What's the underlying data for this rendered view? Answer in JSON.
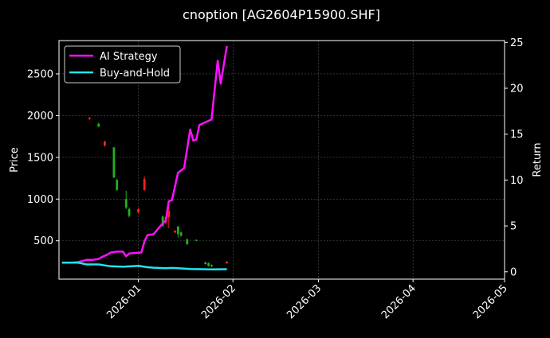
{
  "chart_data": {
    "type": "line",
    "title": "cnoption [AG2604P15900.SHF]",
    "xlabel": "",
    "ylabel_left": "Price",
    "ylabel_right": "Return",
    "x_ticks": [
      "2026-01",
      "2026-02",
      "2026-03",
      "2026-04",
      "2026-05"
    ],
    "y_left_ticks": [
      500,
      1000,
      1500,
      2000,
      2500
    ],
    "y_right_ticks": [
      0,
      5,
      10,
      15,
      20,
      25
    ],
    "y_left_range": [
      40,
      2900
    ],
    "y_right_range": [
      -0.8,
      25.2
    ],
    "x_range": [
      "2025-12-06",
      "2026-05-01"
    ],
    "grid": true,
    "legend_position": "top-left",
    "colors": {
      "background": "#000000",
      "up": "#ff2020",
      "down": "#22b022",
      "ai": "#ff10ff",
      "bh": "#22e5f0",
      "grid": "#555555"
    },
    "series": [
      {
        "name": "AI Strategy",
        "axis": "right",
        "color": "#ff10ff",
        "points": [
          [
            "2025-12-07",
            1.0
          ],
          [
            "2025-12-10",
            1.0
          ],
          [
            "2025-12-12",
            1.05
          ],
          [
            "2025-12-14",
            1.2
          ],
          [
            "2025-12-15",
            1.3
          ],
          [
            "2025-12-17",
            1.3
          ],
          [
            "2025-12-19",
            1.4
          ],
          [
            "2025-12-20",
            1.6
          ],
          [
            "2025-12-22",
            1.9
          ],
          [
            "2025-12-23",
            2.1
          ],
          [
            "2025-12-25",
            2.2
          ],
          [
            "2025-12-27",
            2.2
          ],
          [
            "2025-12-28",
            1.7
          ],
          [
            "2025-12-29",
            2.0
          ],
          [
            "2026-01-02",
            2.1
          ],
          [
            "2026-01-03",
            3.3
          ],
          [
            "2026-01-04",
            4.0
          ],
          [
            "2026-01-06",
            4.1
          ],
          [
            "2026-01-08",
            4.9
          ],
          [
            "2026-01-10",
            5.6
          ],
          [
            "2026-01-11",
            7.7
          ],
          [
            "2026-01-12",
            7.8
          ],
          [
            "2026-01-14",
            10.8
          ],
          [
            "2026-01-16",
            11.3
          ],
          [
            "2026-01-18",
            15.5
          ],
          [
            "2026-01-19",
            14.3
          ],
          [
            "2026-01-20",
            14.4
          ],
          [
            "2026-01-21",
            16.0
          ],
          [
            "2026-01-25",
            16.6
          ],
          [
            "2026-01-27",
            23.0
          ],
          [
            "2026-01-28",
            20.5
          ],
          [
            "2026-01-30",
            24.6
          ]
        ]
      },
      {
        "name": "Buy-and-Hold",
        "axis": "right",
        "color": "#22e5f0",
        "points": [
          [
            "2025-12-07",
            1.0
          ],
          [
            "2025-12-12",
            1.0
          ],
          [
            "2025-12-13",
            0.95
          ],
          [
            "2025-12-15",
            0.8
          ],
          [
            "2025-12-19",
            0.8
          ],
          [
            "2025-12-21",
            0.7
          ],
          [
            "2025-12-23",
            0.6
          ],
          [
            "2025-12-27",
            0.55
          ],
          [
            "2025-12-30",
            0.6
          ],
          [
            "2026-01-01",
            0.65
          ],
          [
            "2026-01-02",
            0.6
          ],
          [
            "2026-01-04",
            0.5
          ],
          [
            "2026-01-06",
            0.45
          ],
          [
            "2026-01-10",
            0.4
          ],
          [
            "2026-01-12",
            0.42
          ],
          [
            "2026-01-14",
            0.4
          ],
          [
            "2026-01-18",
            0.3
          ],
          [
            "2026-01-25",
            0.27
          ],
          [
            "2026-01-30",
            0.28
          ]
        ]
      }
    ],
    "candles": [
      {
        "date": "2025-12-16",
        "open": 1960,
        "close": 1975,
        "high": 1985,
        "low": 1950
      },
      {
        "date": "2025-12-19",
        "open": 1900,
        "close": 1870,
        "high": 1920,
        "low": 1860
      },
      {
        "date": "2025-12-21",
        "open": 1640,
        "close": 1690,
        "high": 1700,
        "low": 1630
      },
      {
        "date": "2025-12-24",
        "open": 1620,
        "close": 1260,
        "high": 1620,
        "low": 1250
      },
      {
        "date": "2025-12-25",
        "open": 1230,
        "close": 1110,
        "high": 1240,
        "low": 1100
      },
      {
        "date": "2025-12-28",
        "open": 1000,
        "close": 900,
        "high": 1100,
        "low": 880
      },
      {
        "date": "2025-12-29",
        "open": 880,
        "close": 800,
        "high": 900,
        "low": 780
      },
      {
        "date": "2026-01-01",
        "open": 840,
        "close": 880,
        "high": 890,
        "low": 830
      },
      {
        "date": "2026-01-03",
        "open": 1110,
        "close": 1240,
        "high": 1270,
        "low": 1100
      },
      {
        "date": "2026-01-09",
        "open": 790,
        "close": 680,
        "high": 800,
        "low": 660
      },
      {
        "date": "2026-01-10",
        "open": 720,
        "close": 780,
        "high": 790,
        "low": 700
      },
      {
        "date": "2026-01-11",
        "open": 780,
        "close": 860,
        "high": 960,
        "low": 650
      },
      {
        "date": "2026-01-13",
        "open": 600,
        "close": 620,
        "high": 630,
        "low": 590
      },
      {
        "date": "2026-01-14",
        "open": 670,
        "close": 580,
        "high": 680,
        "low": 540
      },
      {
        "date": "2026-01-15",
        "open": 600,
        "close": 560,
        "high": 610,
        "low": 550
      },
      {
        "date": "2026-01-17",
        "open": 520,
        "close": 460,
        "high": 520,
        "low": 450
      },
      {
        "date": "2026-01-20",
        "open": 510,
        "close": 505,
        "high": 515,
        "low": 500
      },
      {
        "date": "2026-01-23",
        "open": 240,
        "close": 220,
        "high": 250,
        "low": 215
      },
      {
        "date": "2026-01-24",
        "open": 230,
        "close": 200,
        "high": 240,
        "low": 190
      },
      {
        "date": "2026-01-25",
        "open": 210,
        "close": 195,
        "high": 215,
        "low": 185
      },
      {
        "date": "2026-01-30",
        "open": 230,
        "close": 250,
        "high": 255,
        "low": 225
      }
    ]
  }
}
